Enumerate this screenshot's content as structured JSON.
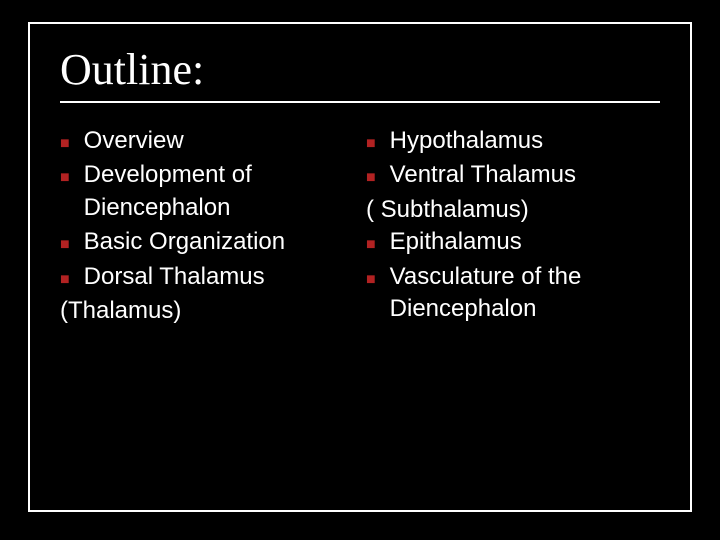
{
  "background_color": "#000000",
  "border_color": "#ffffff",
  "text_color": "#ffffff",
  "bullet_color": "#b22222",
  "bullet_glyph": "■",
  "title": {
    "text": "Outline:",
    "font_family": "Times New Roman",
    "font_size_pt": 33,
    "underline_color": "#ffffff"
  },
  "body_font": {
    "family": "Arial",
    "size_pt": 18
  },
  "left": {
    "items": [
      "Overview",
      "Development of Diencephalon",
      "Basic Organization",
      "Dorsal Thalamus"
    ],
    "trailing": "(Thalamus)"
  },
  "right": {
    "items1": [
      "Hypothalamus",
      "Ventral Thalamus"
    ],
    "paren": "( Subthalamus)",
    "items2": [
      "Epithalamus",
      "Vasculature of the Diencephalon"
    ]
  }
}
